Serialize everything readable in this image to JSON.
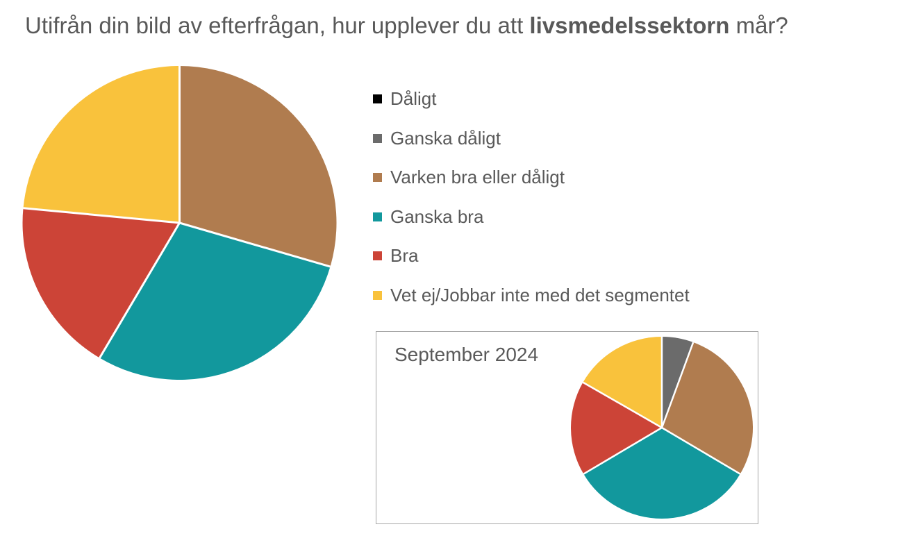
{
  "title": {
    "prefix": "Utifrån din bild av efterfrågan, hur upplever du att ",
    "bold": "livsmedelssektorn",
    "suffix": " mår?"
  },
  "colors": {
    "daligt": "#000000",
    "ganska_daligt": "#6B6B6B",
    "varken_bra_eller_daligt": "#B07C4F",
    "ganska_bra": "#12989D",
    "bra": "#CC4437",
    "vet_ej": "#F9C23C",
    "text": "#595959",
    "inset_border": "#A6A6A6",
    "slice_separator": "#FFFFFF",
    "background": "#FFFFFF"
  },
  "legend": [
    {
      "label": "Dåligt",
      "color": "#000000"
    },
    {
      "label": "Ganska dåligt",
      "color": "#6B6B6B"
    },
    {
      "label": "Varken bra eller dåligt",
      "color": "#B07C4F"
    },
    {
      "label": "Ganska bra",
      "color": "#12989D"
    },
    {
      "label": "Bra",
      "color": "#CC4437"
    },
    {
      "label": "Vet ej/Jobbar inte med det segmentet",
      "color": "#F9C23C"
    }
  ],
  "chart_data": [
    {
      "type": "pie",
      "name": "current-period",
      "title": "",
      "categories": [
        "Dåligt",
        "Ganska dåligt",
        "Varken bra eller dåligt",
        "Ganska bra",
        "Bra",
        "Vet ej/Jobbar inte med det segmentet"
      ],
      "values": [
        0,
        0,
        29.5,
        29,
        18,
        23.5
      ],
      "unit": "percent",
      "colors": [
        "#000000",
        "#6B6B6B",
        "#B07C4F",
        "#12989D",
        "#CC4437",
        "#F9C23C"
      ],
      "start_angle_deg": 0,
      "direction": "clockwise",
      "data_labels": false,
      "legend_position": "right"
    },
    {
      "type": "pie",
      "name": "september-2024",
      "title": "September 2024",
      "categories": [
        "Dåligt",
        "Ganska dåligt",
        "Varken bra eller dåligt",
        "Ganska bra",
        "Bra",
        "Vet ej/Jobbar inte med det segmentet"
      ],
      "values": [
        0,
        5.6,
        27.9,
        33,
        16.8,
        16.7
      ],
      "unit": "percent",
      "colors": [
        "#000000",
        "#6B6B6B",
        "#B07C4F",
        "#12989D",
        "#CC4437",
        "#F9C23C"
      ],
      "start_angle_deg": 0,
      "direction": "clockwise",
      "data_labels": false,
      "legend_position": "none"
    }
  ]
}
